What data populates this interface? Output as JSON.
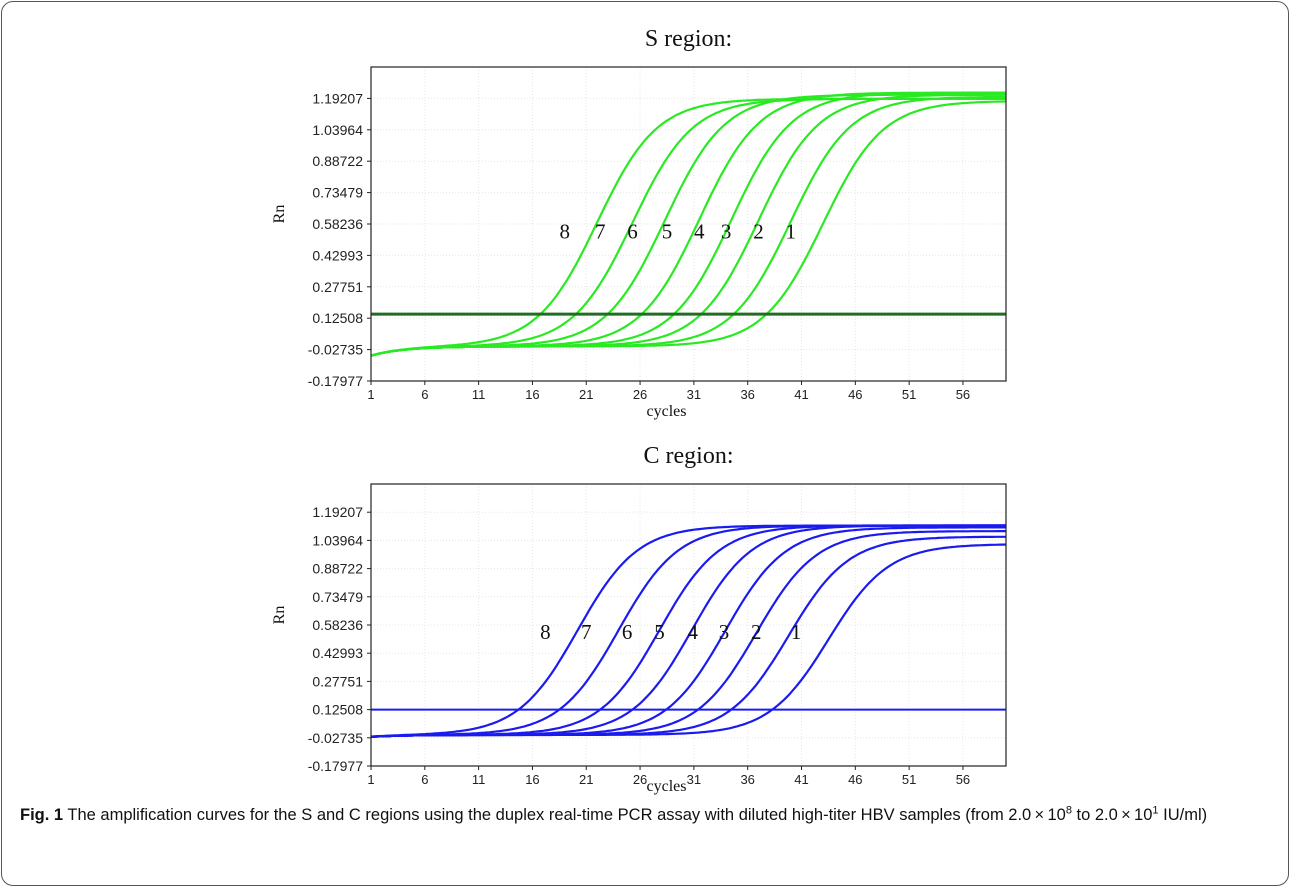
{
  "figure": {
    "panels": [
      {
        "title": "S region:",
        "color": "#29ea22",
        "threshold_color": "#1f6e1f"
      },
      {
        "title": "C region:",
        "color": "#1b1bf0",
        "threshold_color": "#1b1bf0"
      }
    ],
    "caption": {
      "label": "Fig. 1",
      "text_1": " The amplification curves for the S and C regions using the duplex real-time PCR assay with diluted high-titer HBV samples (from 2.0 × 10",
      "sup_1": "8",
      "text_2": " to 2.0 × 10",
      "sup_2": "1",
      "text_3": " IU/ml)"
    }
  },
  "chart_data": [
    {
      "type": "line",
      "title": "S region:",
      "xlabel": "cycles",
      "ylabel": "Rn",
      "xlim": [
        1,
        60
      ],
      "ylim": [
        -0.17977,
        1.3445
      ],
      "x_ticks": [
        "1",
        "6",
        "11",
        "16",
        "21",
        "26",
        "31",
        "36",
        "41",
        "46",
        "51",
        "56"
      ],
      "y_ticks": [
        "1.19207",
        "1.03964",
        "0.88722",
        "0.73479",
        "0.58236",
        "0.42993",
        "0.27751",
        "0.12508",
        "-0.02735",
        "-0.17977"
      ],
      "grid": true,
      "threshold": 0.145,
      "series": [
        {
          "name": "1",
          "midpoint": 43.0,
          "plateau": 1.18
        },
        {
          "name": "2",
          "midpoint": 40.0,
          "plateau": 1.2
        },
        {
          "name": "3",
          "midpoint": 37.0,
          "plateau": 1.21
        },
        {
          "name": "4",
          "midpoint": 34.5,
          "plateau": 1.22
        },
        {
          "name": "5",
          "midpoint": 31.5,
          "plateau": 1.22
        },
        {
          "name": "6",
          "midpoint": 28.3,
          "plateau": 1.21
        },
        {
          "name": "7",
          "midpoint": 25.3,
          "plateau": 1.19
        },
        {
          "name": "8",
          "midpoint": 22.0,
          "plateau": 1.19
        }
      ]
    },
    {
      "type": "line",
      "title": "C region:",
      "xlabel": "cycles",
      "ylabel": "Rn",
      "xlim": [
        1,
        60
      ],
      "ylim": [
        -0.17977,
        1.3445
      ],
      "x_ticks": [
        "1",
        "6",
        "11",
        "16",
        "21",
        "26",
        "31",
        "36",
        "41",
        "46",
        "51",
        "56"
      ],
      "y_ticks": [
        "1.19207",
        "1.03964",
        "0.88722",
        "0.73479",
        "0.58236",
        "0.42993",
        "0.27751",
        "0.12508",
        "-0.02735",
        "-0.17977"
      ],
      "grid": true,
      "threshold": 0.12508,
      "series": [
        {
          "name": "1",
          "midpoint": 43.5,
          "plateau": 1.02
        },
        {
          "name": "2",
          "midpoint": 39.8,
          "plateau": 1.06
        },
        {
          "name": "3",
          "midpoint": 36.8,
          "plateau": 1.09
        },
        {
          "name": "4",
          "midpoint": 33.9,
          "plateau": 1.11
        },
        {
          "name": "5",
          "midpoint": 30.8,
          "plateau": 1.12
        },
        {
          "name": "6",
          "midpoint": 27.8,
          "plateau": 1.12
        },
        {
          "name": "7",
          "midpoint": 24.0,
          "plateau": 1.12
        },
        {
          "name": "8",
          "midpoint": 20.2,
          "plateau": 1.12
        }
      ]
    }
  ]
}
